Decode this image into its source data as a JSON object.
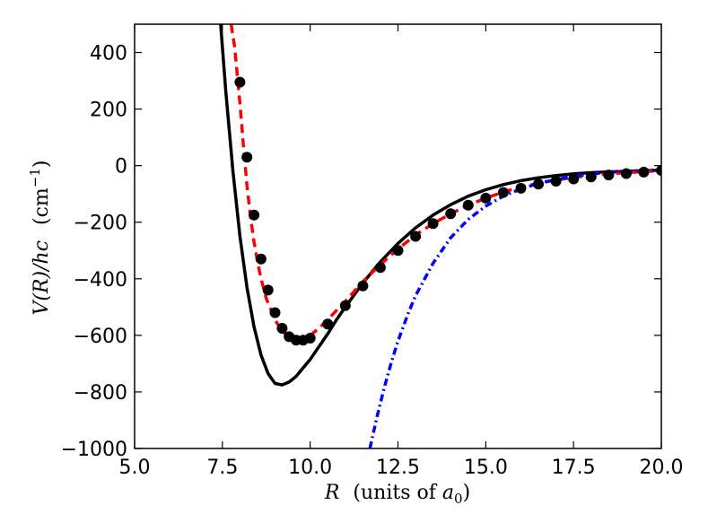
{
  "chart_data": {
    "type": "line",
    "title": "",
    "xlabel": "R  (units of a0)",
    "ylabel": "V(R)/hc  (cm⁻¹)",
    "xlim": [
      5.0,
      20.0
    ],
    "ylim": [
      -1000,
      500
    ],
    "xticks": [
      5.0,
      7.5,
      10.0,
      12.5,
      15.0,
      17.5,
      20.0
    ],
    "xtick_labels": [
      "5.0",
      "7.5",
      "10.0",
      "12.5",
      "15.0",
      "17.5",
      "20.0"
    ],
    "yticks": [
      -1000,
      -800,
      -600,
      -400,
      -200,
      0,
      200,
      400
    ],
    "ytick_labels": [
      "−1000",
      "−800",
      "−600",
      "−400",
      "−200",
      "0",
      "200",
      "400"
    ],
    "series": [
      {
        "name": "black-solid-curve",
        "style": "solid",
        "color": "#000000",
        "x": [
          7.45,
          7.6,
          7.8,
          8.0,
          8.2,
          8.4,
          8.6,
          8.8,
          9.0,
          9.2,
          9.4,
          9.6,
          9.8,
          10.0,
          10.25,
          10.5,
          10.75,
          11.0,
          11.5,
          12.0,
          12.5,
          13.0,
          13.5,
          14.0,
          14.5,
          15.0,
          15.5,
          16.0,
          16.5,
          17.0,
          17.5,
          18.0,
          18.5,
          19.0,
          19.5,
          20.0
        ],
        "y": [
          500,
          260,
          -20,
          -250,
          -430,
          -570,
          -670,
          -735,
          -770,
          -775,
          -765,
          -745,
          -715,
          -685,
          -640,
          -595,
          -545,
          -500,
          -415,
          -340,
          -275,
          -220,
          -175,
          -138,
          -108,
          -85,
          -67,
          -53,
          -43,
          -35,
          -29,
          -25,
          -22,
          -20,
          -18,
          -16
        ]
      },
      {
        "name": "red-dashed-curve",
        "style": "dashed",
        "color": "#ff0000",
        "x": [
          7.75,
          7.85,
          8.0,
          8.1,
          8.2,
          8.3,
          8.4,
          8.5,
          8.6,
          8.75,
          9.0,
          9.2,
          9.4,
          9.6,
          9.8,
          10.0,
          10.25,
          10.5,
          10.75,
          11.0,
          11.5,
          12.0,
          12.5,
          13.0,
          13.5,
          14.0,
          14.5,
          15.0,
          15.5,
          16.0,
          16.5,
          17.0,
          17.5,
          18.0,
          18.5,
          19.0,
          19.5,
          20.0
        ],
        "y": [
          500,
          420,
          220,
          70,
          -70,
          -180,
          -270,
          -340,
          -400,
          -470,
          -545,
          -585,
          -607,
          -615,
          -612,
          -600,
          -575,
          -545,
          -512,
          -480,
          -410,
          -350,
          -295,
          -245,
          -205,
          -170,
          -140,
          -115,
          -93,
          -76,
          -62,
          -51,
          -42,
          -35,
          -29,
          -25,
          -21,
          -18
        ]
      },
      {
        "name": "blue-dash-dot-curve",
        "style": "dashdot",
        "color": "#0000ff",
        "x": [
          11.7,
          11.9,
          12.1,
          12.3,
          12.5,
          12.8,
          13.0,
          13.5,
          14.0,
          14.5,
          15.0,
          15.5,
          16.0,
          16.5,
          17.0,
          17.5,
          18.0,
          18.5,
          19.0,
          19.5,
          20.0
        ],
        "y": [
          -1000,
          -890,
          -790,
          -700,
          -620,
          -520,
          -460,
          -345,
          -255,
          -190,
          -143,
          -108,
          -82,
          -63,
          -49,
          -38,
          -30,
          -24,
          -20,
          -17,
          -15
        ]
      }
    ],
    "points": {
      "name": "data-points",
      "color": "#000000",
      "x": [
        8.0,
        8.2,
        8.4,
        8.6,
        8.8,
        9.0,
        9.2,
        9.4,
        9.6,
        9.8,
        10.0,
        10.5,
        11.0,
        11.5,
        12.0,
        12.5,
        13.0,
        13.5,
        14.0,
        14.5,
        15.0,
        15.5,
        16.0,
        16.5,
        17.0,
        17.5,
        18.0,
        18.5,
        19.0,
        19.5,
        20.0
      ],
      "y": [
        295,
        30,
        -175,
        -330,
        -440,
        -520,
        -575,
        -605,
        -617,
        -617,
        -610,
        -560,
        -495,
        -425,
        -360,
        -300,
        -250,
        -205,
        -170,
        -140,
        -115,
        -95,
        -80,
        -65,
        -55,
        -47,
        -40,
        -33,
        -28,
        -23,
        -17
      ]
    }
  },
  "labels": {
    "x_axis_var": "R",
    "x_axis_text": "(units of ",
    "x_axis_sym": "a",
    "x_axis_sub": "0",
    "x_axis_close": ")",
    "y_axis_var": "V(R)/hc",
    "y_axis_unit": "(cm",
    "y_axis_exp": "−1",
    "y_axis_close": ")"
  }
}
